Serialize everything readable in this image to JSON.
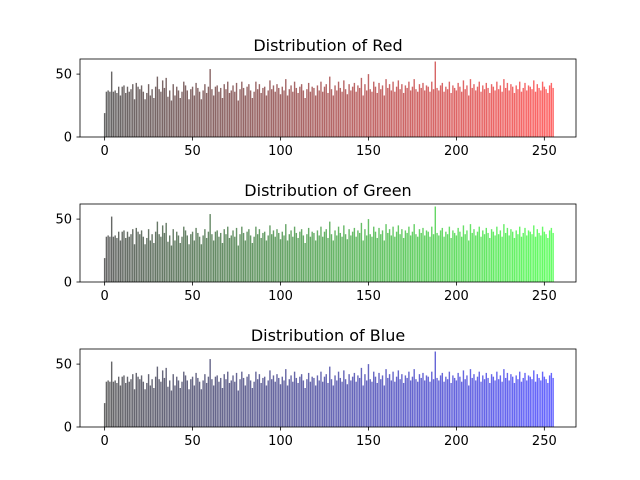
{
  "chart_data": [
    {
      "type": "bar",
      "title": "Distribution of Red",
      "channel_color": "#ff0000",
      "xlim": [
        -14,
        268
      ],
      "ylim": [
        0,
        62
      ],
      "xticks": [
        0,
        50,
        100,
        150,
        200,
        250
      ],
      "yticks": [
        0,
        50
      ],
      "x": "0..255 (one bar per intensity level)",
      "values": [
        19,
        36,
        37,
        36,
        52,
        36,
        37,
        35,
        40,
        33,
        40,
        41,
        35,
        40,
        36,
        38,
        42,
        30,
        43,
        40,
        38,
        41,
        36,
        30,
        35,
        42,
        33,
        38,
        31,
        40,
        48,
        38,
        36,
        45,
        39,
        47,
        32,
        37,
        29,
        42,
        33,
        40,
        37,
        31,
        36,
        44,
        41,
        37,
        30,
        38,
        40,
        33,
        43,
        39,
        36,
        30,
        37,
        42,
        35,
        40,
        54,
        38,
        33,
        40,
        41,
        36,
        39,
        31,
        42,
        38,
        44,
        35,
        37,
        41,
        36,
        43,
        29,
        38,
        44,
        39,
        33,
        40,
        42,
        37,
        31,
        36,
        44,
        38,
        42,
        35,
        39,
        40,
        33,
        37,
        45,
        38,
        41,
        36,
        42,
        39,
        34,
        40,
        37,
        46,
        33,
        38,
        41,
        36,
        44,
        39,
        35,
        40,
        42,
        37,
        31,
        38,
        43,
        36,
        40,
        39,
        33,
        41,
        37,
        44,
        36,
        40,
        42,
        35,
        48,
        38,
        33,
        41,
        37,
        44,
        39,
        36,
        45,
        38,
        34,
        42,
        37,
        40,
        43,
        36,
        41,
        39,
        47,
        33,
        42,
        37,
        50,
        38,
        36,
        44,
        40,
        35,
        43,
        38,
        41,
        33,
        46,
        39,
        42,
        37,
        44,
        36,
        40,
        45,
        38,
        42,
        35,
        41,
        39,
        44,
        37,
        40,
        46,
        38,
        36,
        42,
        39,
        43,
        37,
        41,
        40,
        36,
        44,
        38,
        60,
        39,
        37,
        41,
        43,
        36,
        40,
        38,
        44,
        35,
        41,
        39,
        37,
        43,
        40,
        36,
        45,
        38,
        41,
        33,
        46,
        39,
        42,
        37,
        40,
        44,
        36,
        41,
        38,
        43,
        39,
        35,
        42,
        40,
        37,
        44,
        38,
        41,
        36,
        46,
        39,
        43,
        37,
        42,
        40,
        35,
        41,
        38,
        44,
        36,
        39,
        43,
        37,
        41,
        40,
        38,
        45,
        36,
        42,
        39,
        37,
        44,
        40,
        38,
        35,
        41,
        43,
        39
      ],
      "ylabel": "",
      "xlabel": ""
    },
    {
      "type": "bar",
      "title": "Distribution of Green",
      "channel_color": "#00ff00",
      "xlim": [
        -14,
        268
      ],
      "ylim": [
        0,
        62
      ],
      "xticks": [
        0,
        50,
        100,
        150,
        200,
        250
      ],
      "yticks": [
        0,
        50
      ],
      "x": "0..255 (one bar per intensity level)",
      "values": [
        19,
        36,
        37,
        36,
        52,
        36,
        37,
        35,
        40,
        33,
        40,
        41,
        35,
        40,
        36,
        38,
        42,
        30,
        43,
        40,
        38,
        41,
        36,
        30,
        35,
        42,
        33,
        38,
        31,
        40,
        48,
        38,
        36,
        45,
        39,
        47,
        32,
        37,
        29,
        42,
        33,
        40,
        37,
        31,
        36,
        44,
        41,
        37,
        30,
        38,
        40,
        33,
        43,
        39,
        36,
        30,
        37,
        42,
        35,
        40,
        54,
        38,
        33,
        40,
        41,
        36,
        39,
        31,
        42,
        38,
        44,
        35,
        37,
        41,
        36,
        43,
        29,
        38,
        44,
        39,
        33,
        40,
        42,
        37,
        31,
        36,
        44,
        38,
        42,
        35,
        39,
        40,
        33,
        37,
        45,
        38,
        41,
        36,
        42,
        39,
        34,
        40,
        37,
        46,
        33,
        38,
        41,
        36,
        44,
        39,
        35,
        40,
        42,
        37,
        31,
        38,
        43,
        36,
        40,
        39,
        33,
        41,
        37,
        44,
        36,
        40,
        42,
        35,
        48,
        38,
        33,
        41,
        37,
        44,
        39,
        36,
        45,
        38,
        34,
        42,
        37,
        40,
        43,
        36,
        41,
        39,
        47,
        33,
        42,
        37,
        50,
        38,
        36,
        44,
        40,
        35,
        43,
        38,
        41,
        33,
        46,
        39,
        42,
        37,
        44,
        36,
        40,
        45,
        38,
        42,
        35,
        41,
        39,
        44,
        37,
        40,
        46,
        38,
        36,
        42,
        39,
        43,
        37,
        41,
        40,
        36,
        44,
        38,
        60,
        39,
        37,
        41,
        43,
        36,
        40,
        38,
        44,
        35,
        41,
        39,
        37,
        43,
        40,
        36,
        45,
        38,
        41,
        33,
        46,
        39,
        42,
        37,
        40,
        44,
        36,
        41,
        38,
        43,
        39,
        35,
        42,
        40,
        37,
        44,
        38,
        41,
        36,
        46,
        39,
        43,
        37,
        42,
        40,
        35,
        41,
        38,
        44,
        36,
        39,
        43,
        37,
        41,
        40,
        38,
        45,
        36,
        42,
        39,
        37,
        44,
        40,
        38,
        35,
        41,
        43,
        39
      ],
      "ylabel": "",
      "xlabel": ""
    },
    {
      "type": "bar",
      "title": "Distribution of Blue",
      "channel_color": "#0000ff",
      "xlim": [
        -14,
        268
      ],
      "ylim": [
        0,
        62
      ],
      "xticks": [
        0,
        50,
        100,
        150,
        200,
        250
      ],
      "yticks": [
        0,
        50
      ],
      "x": "0..255 (one bar per intensity level)",
      "values": [
        19,
        36,
        37,
        36,
        52,
        36,
        37,
        35,
        40,
        33,
        40,
        41,
        35,
        40,
        36,
        38,
        42,
        30,
        43,
        40,
        38,
        41,
        36,
        30,
        35,
        42,
        33,
        38,
        31,
        40,
        48,
        38,
        36,
        45,
        39,
        47,
        32,
        37,
        29,
        42,
        33,
        40,
        37,
        31,
        36,
        44,
        41,
        37,
        30,
        38,
        40,
        33,
        43,
        39,
        36,
        30,
        37,
        42,
        35,
        40,
        54,
        38,
        33,
        40,
        41,
        36,
        39,
        31,
        42,
        38,
        44,
        35,
        37,
        41,
        36,
        43,
        29,
        38,
        44,
        39,
        33,
        40,
        42,
        37,
        31,
        36,
        44,
        38,
        42,
        35,
        39,
        40,
        33,
        37,
        45,
        38,
        41,
        36,
        42,
        39,
        34,
        40,
        37,
        46,
        33,
        38,
        41,
        36,
        44,
        39,
        35,
        40,
        42,
        37,
        31,
        38,
        43,
        36,
        40,
        39,
        33,
        41,
        37,
        44,
        36,
        40,
        42,
        35,
        48,
        38,
        33,
        41,
        37,
        44,
        39,
        36,
        45,
        38,
        34,
        42,
        37,
        40,
        43,
        36,
        41,
        39,
        47,
        33,
        42,
        37,
        50,
        38,
        36,
        44,
        40,
        35,
        43,
        38,
        41,
        33,
        46,
        39,
        42,
        37,
        44,
        36,
        40,
        45,
        38,
        42,
        35,
        41,
        39,
        44,
        37,
        40,
        46,
        38,
        36,
        42,
        39,
        43,
        37,
        41,
        40,
        36,
        44,
        38,
        60,
        39,
        37,
        41,
        43,
        36,
        40,
        38,
        44,
        35,
        41,
        39,
        37,
        43,
        40,
        36,
        45,
        38,
        41,
        33,
        46,
        39,
        42,
        37,
        40,
        44,
        36,
        41,
        38,
        43,
        39,
        35,
        42,
        40,
        37,
        44,
        38,
        41,
        36,
        46,
        39,
        43,
        37,
        42,
        40,
        35,
        41,
        38,
        44,
        36,
        39,
        43,
        37,
        41,
        40,
        38,
        45,
        36,
        42,
        39,
        37,
        44,
        40,
        38,
        35,
        41,
        43,
        39
      ],
      "ylabel": "",
      "xlabel": ""
    }
  ]
}
